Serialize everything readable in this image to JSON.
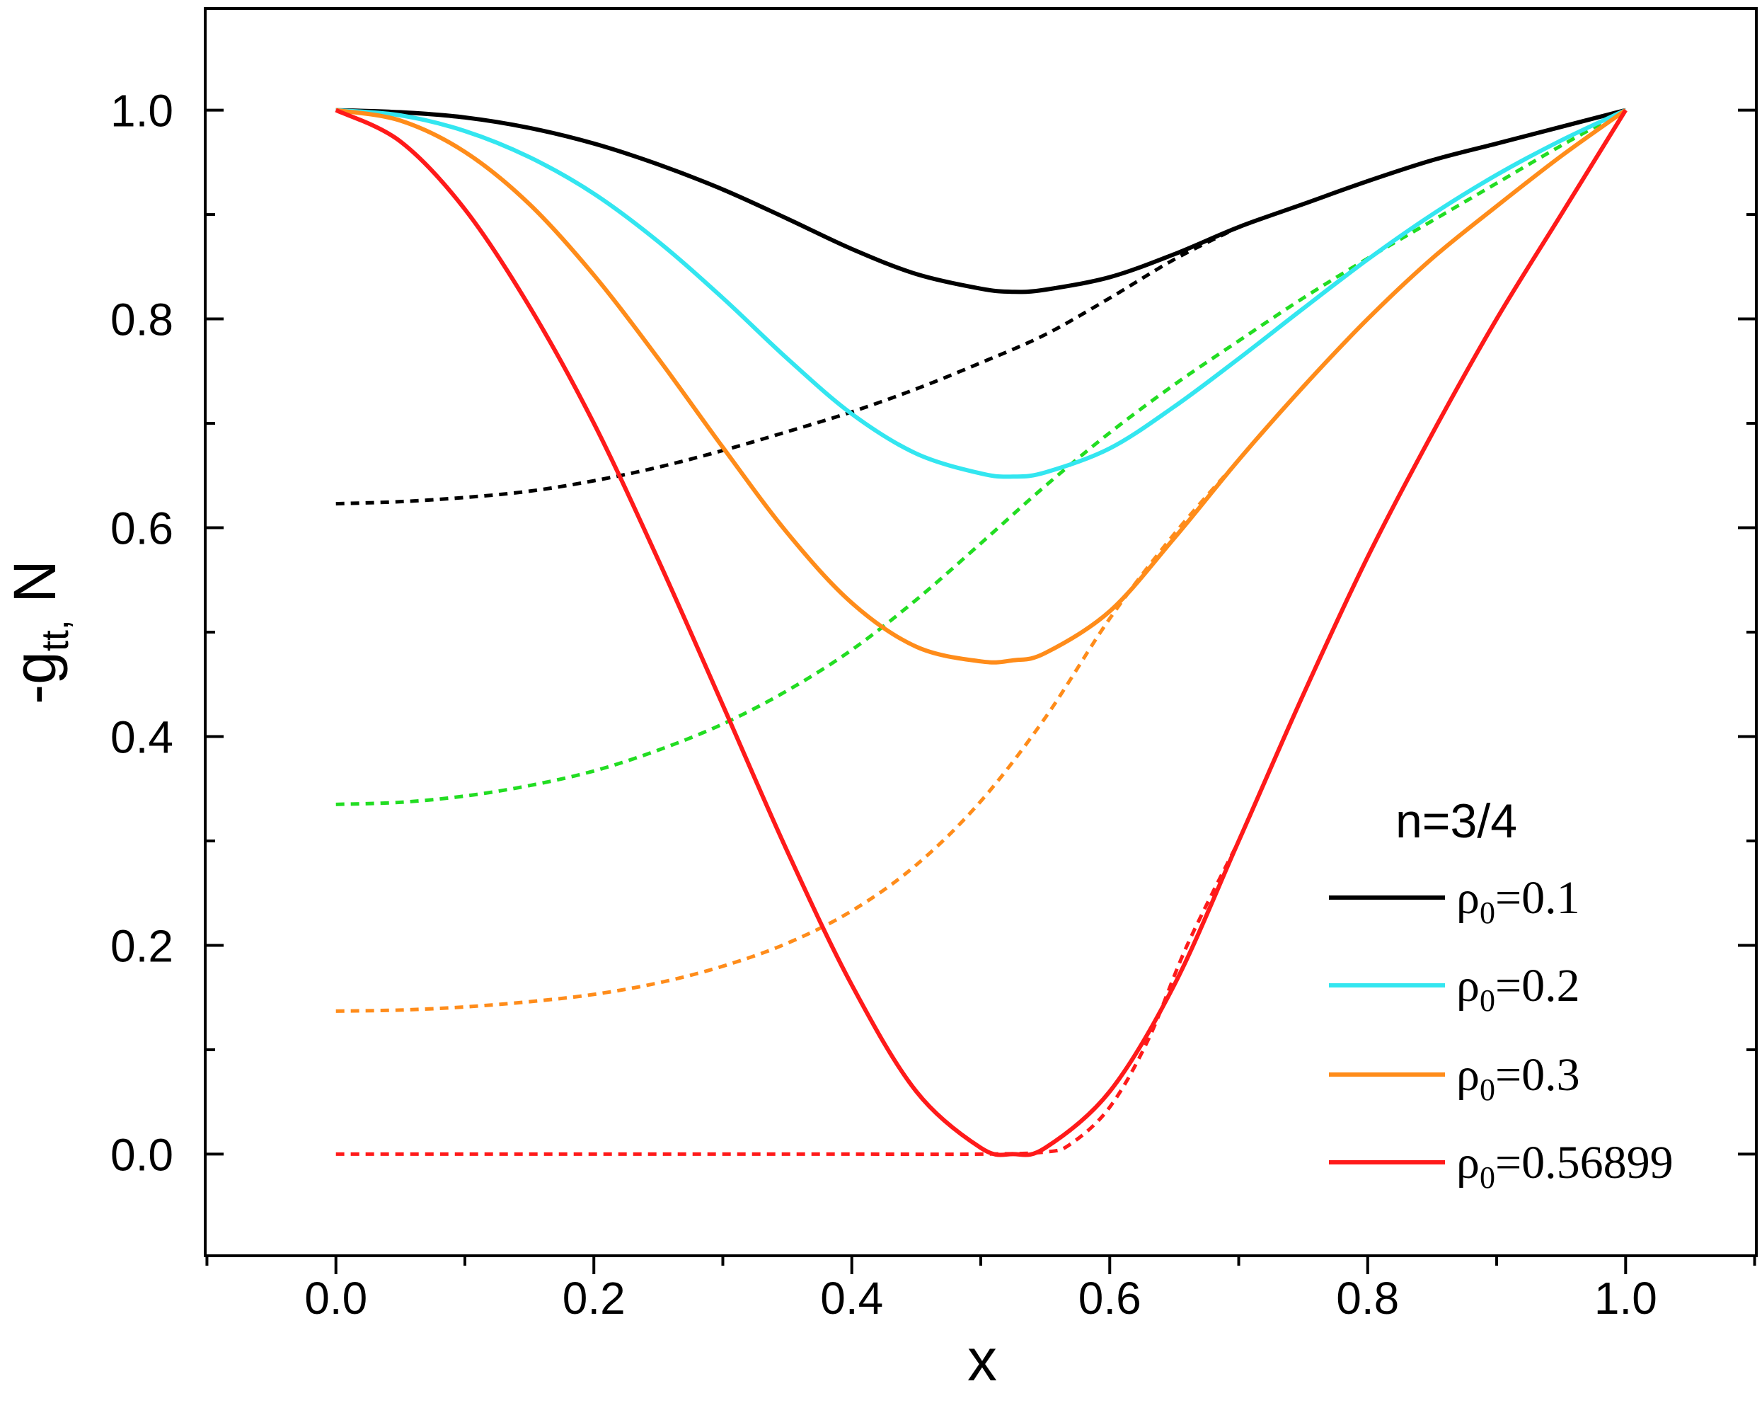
{
  "chart_data": {
    "type": "line",
    "xlabel": "x",
    "ylabel": {
      "main": "-g",
      "sub": "tt,",
      "rest": " N"
    },
    "xlim": [
      -0.1,
      1.1
    ],
    "ylim": [
      -0.1,
      1.1
    ],
    "xticks": [
      "0.0",
      "0.2",
      "0.4",
      "0.6",
      "0.8",
      "1.0"
    ],
    "yticks": [
      "0.0",
      "0.2",
      "0.4",
      "0.6",
      "0.8",
      "1.0"
    ],
    "legend": {
      "title": "n=3/4",
      "position": "bottom-right",
      "entries": [
        {
          "sym": "ρ",
          "sub": "0",
          "text": "=0.1",
          "color": "#000000"
        },
        {
          "sym": "ρ",
          "sub": "0",
          "text": "=0.2",
          "color": "#33e6f0"
        },
        {
          "sym": "ρ",
          "sub": "0",
          "text": "=0.3",
          "color": "#ff8c1a"
        },
        {
          "sym": "ρ",
          "sub": "0",
          "text": "=0.56899",
          "color": "#ff1a1a"
        }
      ]
    },
    "series": [
      {
        "name": "-g_tt rho0=0.1",
        "style": "solid",
        "color": "#000000",
        "x": [
          0,
          0.05,
          0.1,
          0.15,
          0.2,
          0.25,
          0.3,
          0.35,
          0.4,
          0.45,
          0.5,
          0.525,
          0.55,
          0.6,
          0.65,
          0.7,
          0.75,
          0.8,
          0.85,
          0.9,
          0.95,
          1.0
        ],
        "y": [
          1.0,
          0.998,
          0.993,
          0.983,
          0.968,
          0.948,
          0.924,
          0.896,
          0.867,
          0.843,
          0.829,
          0.826,
          0.828,
          0.84,
          0.862,
          0.888,
          0.91,
          0.932,
          0.952,
          0.968,
          0.984,
          1.0
        ]
      },
      {
        "name": "N rho0=0.1",
        "style": "dashed",
        "color": "#000000",
        "x": [
          0,
          0.05,
          0.1,
          0.15,
          0.2,
          0.25,
          0.3,
          0.35,
          0.4,
          0.45,
          0.5,
          0.55,
          0.6,
          0.65,
          0.7
        ],
        "y": [
          0.623,
          0.625,
          0.629,
          0.635,
          0.645,
          0.658,
          0.674,
          0.692,
          0.711,
          0.733,
          0.758,
          0.785,
          0.82,
          0.857,
          0.888
        ]
      },
      {
        "name": "-g_tt rho0=0.2",
        "style": "solid",
        "color": "#33e6f0",
        "x": [
          0,
          0.05,
          0.1,
          0.15,
          0.2,
          0.25,
          0.3,
          0.35,
          0.4,
          0.45,
          0.5,
          0.525,
          0.55,
          0.6,
          0.65,
          0.7,
          0.75,
          0.8,
          0.85,
          0.9,
          0.95,
          1.0
        ],
        "y": [
          1.0,
          0.995,
          0.98,
          0.955,
          0.92,
          0.874,
          0.82,
          0.762,
          0.709,
          0.671,
          0.652,
          0.649,
          0.653,
          0.676,
          0.716,
          0.762,
          0.81,
          0.857,
          0.9,
          0.938,
          0.971,
          1.0
        ]
      },
      {
        "name": "N rho0=0.2",
        "style": "dashed",
        "color": "#22dd22",
        "x": [
          0,
          0.05,
          0.1,
          0.15,
          0.2,
          0.25,
          0.3,
          0.35,
          0.4,
          0.45,
          0.5,
          0.55,
          0.6,
          0.65,
          0.7,
          0.75,
          0.8,
          0.85,
          0.9,
          0.95,
          1.0
        ],
        "y": [
          0.335,
          0.337,
          0.343,
          0.353,
          0.367,
          0.387,
          0.412,
          0.444,
          0.483,
          0.531,
          0.585,
          0.64,
          0.691,
          0.737,
          0.779,
          0.82,
          0.858,
          0.894,
          0.93,
          0.966,
          1.0
        ]
      },
      {
        "name": "-g_tt rho0=0.3",
        "style": "solid",
        "color": "#ff8c1a",
        "x": [
          0,
          0.05,
          0.1,
          0.15,
          0.2,
          0.25,
          0.3,
          0.35,
          0.4,
          0.45,
          0.5,
          0.525,
          0.55,
          0.6,
          0.65,
          0.7,
          0.75,
          0.8,
          0.85,
          0.9,
          0.95,
          1.0
        ],
        "y": [
          1.0,
          0.99,
          0.96,
          0.91,
          0.842,
          0.762,
          0.677,
          0.595,
          0.528,
          0.486,
          0.472,
          0.473,
          0.48,
          0.52,
          0.59,
          0.665,
          0.735,
          0.8,
          0.858,
          0.908,
          0.956,
          1.0
        ]
      },
      {
        "name": "N rho0=0.3",
        "style": "dashed",
        "color": "#ff8c1a",
        "x": [
          0,
          0.05,
          0.1,
          0.15,
          0.2,
          0.25,
          0.3,
          0.35,
          0.4,
          0.45,
          0.5,
          0.55,
          0.6,
          0.65,
          0.7
        ],
        "y": [
          0.137,
          0.138,
          0.141,
          0.146,
          0.153,
          0.164,
          0.18,
          0.202,
          0.233,
          0.277,
          0.338,
          0.418,
          0.513,
          0.594,
          0.665
        ]
      },
      {
        "name": "-g_tt rho0=0.56899",
        "style": "solid",
        "color": "#ff1a1a",
        "x": [
          0,
          0.05,
          0.1,
          0.15,
          0.2,
          0.25,
          0.3,
          0.35,
          0.4,
          0.45,
          0.5,
          0.525,
          0.55,
          0.6,
          0.65,
          0.7,
          0.75,
          0.8,
          0.85,
          0.9,
          0.95,
          1.0
        ],
        "y": [
          1.0,
          0.97,
          0.905,
          0.812,
          0.7,
          0.569,
          0.43,
          0.29,
          0.162,
          0.06,
          0.006,
          0.0,
          0.006,
          0.06,
          0.162,
          0.3,
          0.44,
          0.572,
          0.69,
          0.8,
          0.9,
          1.0
        ]
      },
      {
        "name": "N rho0=0.56899",
        "style": "dashed",
        "color": "#ff1a1a",
        "x": [
          0,
          0.1,
          0.2,
          0.3,
          0.4,
          0.5,
          0.55,
          0.57,
          0.6,
          0.63,
          0.66,
          0.7
        ],
        "y": [
          0.0,
          0.0,
          0.0,
          0.0,
          0.0,
          0.0,
          0.002,
          0.01,
          0.045,
          0.11,
          0.2,
          0.3
        ]
      }
    ]
  }
}
